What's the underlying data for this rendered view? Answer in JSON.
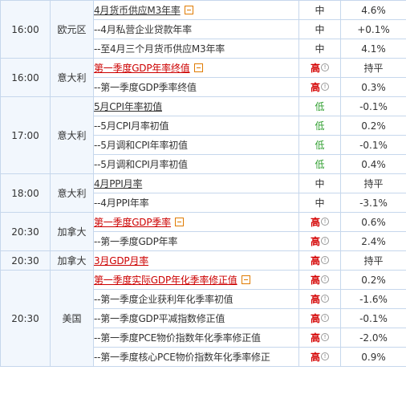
{
  "expand_icon": "collapse-minus-icon",
  "warning_icon": "exclamation-circle-icon",
  "colors": {
    "high": "#d40000",
    "low": "#2e9e2e",
    "headline_red": "#cc0000",
    "border": "#c6d7ec",
    "expand_box": "#e07b00"
  },
  "rows": [
    {
      "time": "16:00",
      "region": "欧元区",
      "event": "4月货币供应M3年率",
      "importance": "中",
      "value": "4.6%"
    },
    {
      "event": "--4月私营企业贷款年率",
      "importance": "中",
      "value": "+0.1%"
    },
    {
      "event": "--至4月三个月货币供应M3年率",
      "importance": "中",
      "value": "4.1%"
    },
    {
      "time": "16:00",
      "region": "意大利",
      "event": "第一季度GDP年率终值",
      "importance": "高",
      "value": "持平"
    },
    {
      "event": "--第一季度GDP季率终值",
      "importance": "高",
      "value": "0.3%"
    },
    {
      "time": "17:00",
      "region": "意大利",
      "event": "5月CPI年率初值",
      "importance": "低",
      "value": "-0.1%"
    },
    {
      "event": "--5月CPI月率初值",
      "importance": "低",
      "value": "0.2%"
    },
    {
      "event": "--5月调和CPI年率初值",
      "importance": "低",
      "value": "-0.1%"
    },
    {
      "event": "--5月调和CPI月率初值",
      "importance": "低",
      "value": "0.4%"
    },
    {
      "time": "18:00",
      "region": "意大利",
      "event": "4月PPI月率",
      "importance": "中",
      "value": "持平"
    },
    {
      "event": "--4月PPI年率",
      "importance": "中",
      "value": "-3.1%"
    },
    {
      "time": "20:30",
      "region": "加拿大",
      "event": "第一季度GDP季率",
      "importance": "高",
      "value": "0.6%"
    },
    {
      "event": "--第一季度GDP年率",
      "importance": "高",
      "value": "2.4%"
    },
    {
      "time": "20:30",
      "region": "加拿大",
      "event": "3月GDP月率",
      "importance": "高",
      "value": "持平"
    },
    {
      "time": "20:30",
      "region": "美国",
      "event": "第一季度实际GDP年化季率修正值",
      "importance": "高",
      "value": "0.2%"
    },
    {
      "event": "--第一季度企业获利年化季率初值",
      "importance": "高",
      "value": "-1.6%"
    },
    {
      "event": "--第一季度GDP平减指数修正值",
      "importance": "高",
      "value": "-0.1%"
    },
    {
      "event": "--第一季度PCE物价指数年化季率修正值",
      "importance": "高",
      "value": "-2.0%"
    },
    {
      "event": "--第一季度核心PCE物价指数年化季率修正",
      "importance": "高",
      "value": "0.9%"
    }
  ]
}
